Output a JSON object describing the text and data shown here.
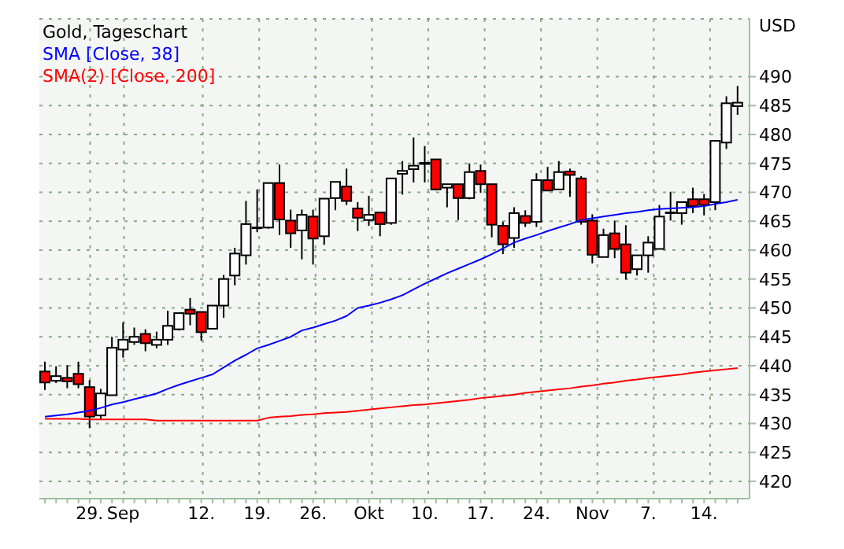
{
  "chart_data": {
    "type": "candlestick",
    "title": "Gold, Tageschart",
    "ylabel": "USD",
    "categories": [
      null,
      null,
      null,
      null,
      "29.",
      null,
      null,
      "Sep",
      null,
      null,
      null,
      null,
      null,
      null,
      "12.",
      null,
      null,
      null,
      null,
      "19.",
      null,
      null,
      null,
      null,
      "26.",
      null,
      null,
      null,
      null,
      "Okt",
      null,
      null,
      null,
      null,
      "10.",
      null,
      null,
      null,
      null,
      "17.",
      null,
      null,
      null,
      null,
      "24.",
      null,
      null,
      null,
      null,
      "Nov",
      null,
      null,
      null,
      null,
      "7.",
      null,
      null,
      null,
      null,
      "14.",
      null,
      null,
      null
    ],
    "ohlc": [
      [
        439.0,
        440.7,
        435.8,
        437.1
      ],
      [
        437.4,
        439.9,
        437.0,
        438.2
      ],
      [
        437.9,
        440.1,
        436.1,
        437.3
      ],
      [
        438.6,
        440.7,
        436.1,
        436.8
      ],
      [
        436.3,
        437.5,
        429.2,
        431.2
      ],
      [
        431.4,
        436.0,
        430.8,
        435.2
      ],
      [
        434.9,
        445.0,
        434.9,
        443.1
      ],
      [
        442.8,
        447.5,
        441.4,
        444.5
      ],
      [
        444.1,
        446.6,
        443.6,
        445.0
      ],
      [
        445.5,
        446.3,
        442.5,
        443.9
      ],
      [
        443.6,
        445.9,
        443.0,
        444.5
      ],
      [
        444.5,
        449.5,
        443.6,
        446.9
      ],
      [
        446.3,
        449.1,
        446.1,
        449.1
      ],
      [
        449.7,
        451.7,
        447.0,
        449.0
      ],
      [
        449.3,
        449.3,
        444.3,
        445.8
      ],
      [
        446.4,
        450.4,
        446.4,
        450.4
      ],
      [
        450.4,
        455.7,
        448.3,
        455.0
      ],
      [
        455.6,
        460.4,
        453.9,
        459.4
      ],
      [
        459.1,
        468.5,
        457.5,
        464.5
      ],
      [
        463.8,
        470.5,
        463.1,
        463.9
      ],
      [
        463.9,
        471.6,
        463.7,
        471.6
      ],
      [
        471.6,
        474.8,
        462.6,
        465.3
      ],
      [
        465.1,
        467.0,
        460.4,
        462.9
      ],
      [
        463.4,
        467.0,
        458.4,
        466.1
      ],
      [
        465.8,
        467.0,
        457.5,
        462.0
      ],
      [
        462.4,
        468.9,
        460.9,
        468.9
      ],
      [
        469.0,
        471.8,
        466.9,
        471.8
      ],
      [
        471.0,
        474.1,
        467.8,
        468.5
      ],
      [
        467.2,
        468.3,
        463.3,
        465.6
      ],
      [
        465.2,
        469.4,
        464.2,
        466.1
      ],
      [
        466.5,
        466.5,
        462.4,
        464.5
      ],
      [
        464.7,
        472.4,
        464.4,
        472.4
      ],
      [
        473.2,
        475.4,
        469.6,
        473.7
      ],
      [
        474.0,
        479.5,
        471.7,
        474.6
      ],
      [
        474.9,
        478.0,
        471.7,
        475.1
      ],
      [
        475.7,
        475.7,
        470.3,
        470.5
      ],
      [
        470.8,
        471.4,
        467.4,
        471.4
      ],
      [
        471.4,
        471.4,
        465.2,
        469.0
      ],
      [
        469.0,
        475.0,
        468.8,
        473.5
      ],
      [
        473.7,
        474.8,
        469.9,
        471.4
      ],
      [
        471.4,
        471.4,
        462.2,
        464.4
      ],
      [
        464.2,
        464.9,
        459.3,
        461.0
      ],
      [
        462.1,
        467.4,
        460.4,
        466.4
      ],
      [
        465.9,
        466.9,
        464.0,
        464.7
      ],
      [
        464.9,
        473.3,
        464.0,
        472.1
      ],
      [
        472.1,
        474.4,
        470.3,
        470.3
      ],
      [
        470.5,
        475.4,
        470.5,
        473.5
      ],
      [
        473.6,
        474.1,
        469.2,
        473.0
      ],
      [
        472.4,
        472.8,
        464.4,
        464.9
      ],
      [
        465.1,
        466.2,
        457.7,
        459.2
      ],
      [
        458.8,
        463.7,
        458.8,
        462.6
      ],
      [
        462.9,
        465.1,
        458.6,
        460.2
      ],
      [
        461.0,
        464.3,
        454.9,
        456.1
      ],
      [
        456.7,
        459.1,
        455.6,
        459.1
      ],
      [
        459.1,
        462.4,
        456.1,
        461.3
      ],
      [
        460.2,
        467.8,
        460.2,
        465.8
      ],
      [
        466.4,
        470.1,
        465.1,
        466.5
      ],
      [
        466.4,
        468.3,
        464.4,
        468.3
      ],
      [
        468.8,
        470.8,
        466.4,
        467.6
      ],
      [
        468.8,
        469.7,
        466.0,
        467.8
      ],
      [
        468.3,
        478.9,
        466.9,
        478.9
      ],
      [
        478.6,
        486.6,
        477.5,
        485.4
      ],
      [
        484.9,
        488.4,
        483.4,
        485.5
      ]
    ],
    "series": [
      {
        "type": "line",
        "name": "SMA [Close, 38]",
        "color": "#0000ff",
        "values": [
          431.2,
          431.4,
          431.6,
          431.9,
          432.2,
          432.7,
          433.3,
          433.7,
          434.2,
          434.7,
          435.2,
          436.0,
          436.7,
          437.3,
          437.9,
          438.5,
          439.7,
          440.9,
          441.9,
          443.0,
          443.6,
          444.3,
          445.0,
          446.1,
          446.6,
          447.2,
          447.8,
          448.6,
          450.0,
          450.4,
          450.9,
          451.5,
          452.2,
          453.2,
          454.2,
          455.1,
          456.0,
          456.8,
          457.6,
          458.4,
          459.3,
          460.3,
          461.3,
          462.0,
          462.6,
          463.3,
          463.9,
          464.5,
          465.2,
          465.5,
          465.8,
          466.1,
          466.4,
          466.6,
          466.9,
          467.1,
          467.2,
          467.3,
          467.4,
          467.6,
          468.0,
          468.3,
          468.7
        ]
      },
      {
        "type": "line",
        "name": "SMA(2) [Close, 200]",
        "color": "#ff0000",
        "values": [
          430.8,
          430.8,
          430.8,
          430.8,
          430.7,
          430.7,
          430.7,
          430.7,
          430.7,
          430.7,
          430.5,
          430.5,
          430.5,
          430.5,
          430.5,
          430.5,
          430.5,
          430.5,
          430.5,
          430.5,
          431.0,
          431.2,
          431.3,
          431.5,
          431.6,
          431.8,
          431.9,
          432.0,
          432.2,
          432.4,
          432.6,
          432.8,
          433.0,
          433.2,
          433.3,
          433.5,
          433.7,
          433.9,
          434.1,
          434.4,
          434.6,
          434.8,
          435.0,
          435.3,
          435.5,
          435.7,
          435.9,
          436.1,
          436.4,
          436.6,
          436.9,
          437.1,
          437.4,
          437.6,
          437.9,
          438.1,
          438.3,
          438.5,
          438.8,
          439.0,
          439.2,
          439.4,
          439.6
        ]
      }
    ],
    "ylim": [
      417,
      500
    ],
    "yticks": [
      420,
      425,
      430,
      435,
      440,
      445,
      450,
      455,
      460,
      465,
      470,
      475,
      480,
      485,
      490
    ],
    "grid": true,
    "legend": "top left"
  }
}
